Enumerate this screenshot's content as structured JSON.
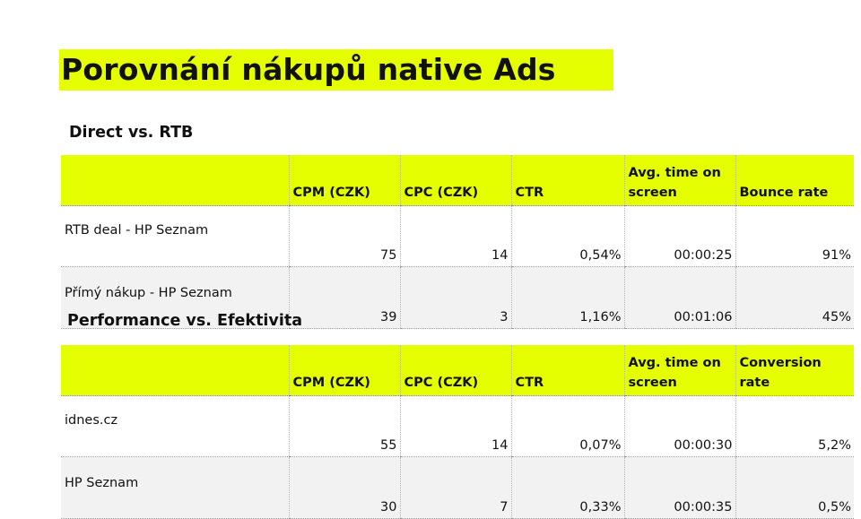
{
  "title": "Porovnání nákupů native Ads",
  "section1": {
    "title": "Direct vs. RTB",
    "headers": [
      "",
      "CPM (CZK)",
      "CPC (CZK)",
      "CTR",
      "Avg. time on screen",
      "Bounce rate"
    ],
    "rows": [
      [
        "RTB deal - HP Seznam",
        "75",
        "14",
        "0,54%",
        "00:00:25",
        "91%"
      ],
      [
        "Přímý nákup - HP Seznam",
        "39",
        "3",
        "1,16%",
        "00:01:06",
        "45%"
      ]
    ]
  },
  "section2": {
    "title": "Performance vs. Efektivita",
    "headers": [
      "",
      "CPM (CZK)",
      "CPC (CZK)",
      "CTR",
      "Avg. time on screen",
      "Conversion rate"
    ],
    "rows": [
      [
        "idnes.cz",
        "55",
        "14",
        "0,07%",
        "00:00:30",
        "5,2%"
      ],
      [
        "HP Seznam",
        "30",
        "7",
        "0,33%",
        "00:00:35",
        "0,5%"
      ]
    ]
  },
  "colors": {
    "highlight": "#e6ff00",
    "alt_row": "#f2f2f2"
  }
}
